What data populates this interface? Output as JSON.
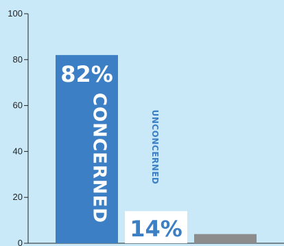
{
  "chart_data": {
    "type": "bar",
    "title": "",
    "xlabel": "",
    "ylabel": "",
    "ylim": [
      0,
      100
    ],
    "yticks": [
      0,
      20,
      40,
      60,
      80,
      100
    ],
    "grid": false,
    "categories": [
      "CONCERNED",
      "UNCONCERNED",
      ""
    ],
    "values": [
      82,
      14,
      4
    ],
    "value_labels": [
      "82%",
      "14%",
      ""
    ],
    "bar_colors": [
      "#3d7fc4",
      "#ffffff",
      "#8c8c8c"
    ],
    "value_label_colors": [
      "#ffffff",
      "#3d7fc4",
      ""
    ],
    "category_label_colors": [
      "#ffffff",
      "#3d7fc4",
      ""
    ]
  }
}
